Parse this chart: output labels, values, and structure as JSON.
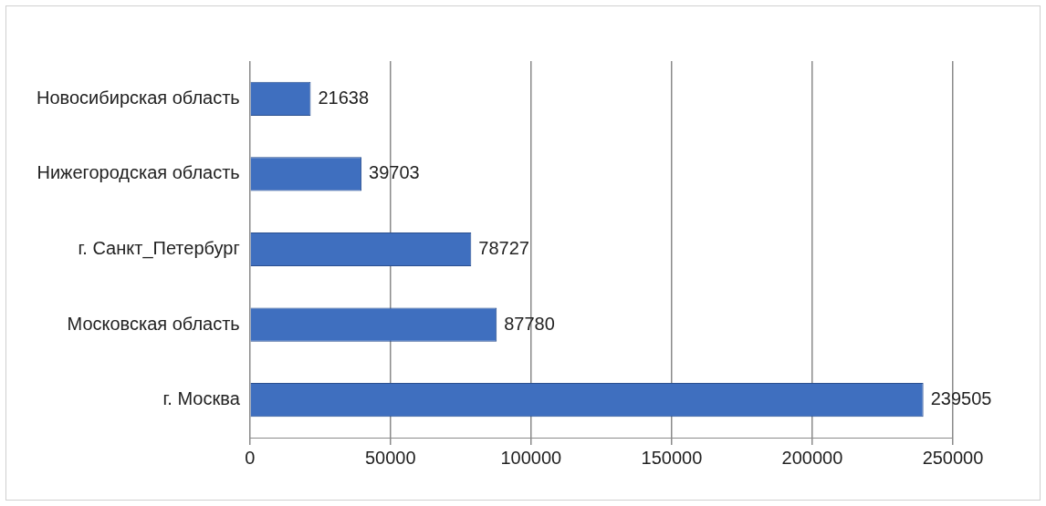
{
  "chart_data": {
    "type": "bar",
    "orientation": "horizontal",
    "categories": [
      "Новосибирская область",
      "Нижегородская область",
      "г. Санкт_Петербург",
      "Московская область",
      "г. Москва"
    ],
    "values": [
      21638,
      39703,
      78727,
      87780,
      239505
    ],
    "color": "#3f6fbf",
    "xlim": [
      0,
      250000
    ],
    "xticks": [
      0,
      50000,
      100000,
      150000,
      200000,
      250000
    ],
    "grid": "x",
    "legend": false,
    "data_labels": true
  }
}
